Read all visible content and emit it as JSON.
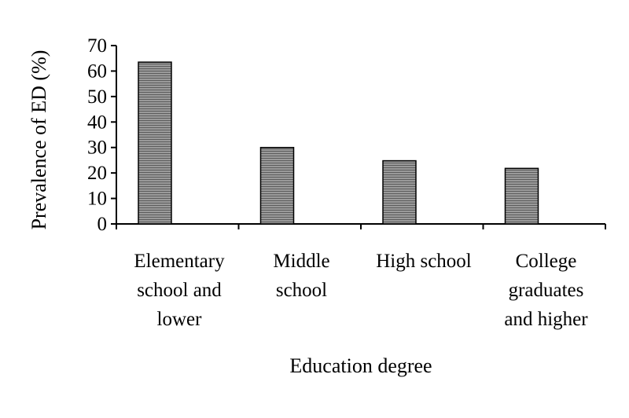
{
  "chart_data": {
    "type": "bar",
    "title": "",
    "xlabel": "Education degree",
    "ylabel": "Prevalence of ED (%)",
    "ylim": [
      0,
      70
    ],
    "yticks": [
      0,
      10,
      20,
      30,
      40,
      50,
      60,
      70
    ],
    "categories": [
      [
        "Elementary",
        "school and",
        "lower"
      ],
      [
        "Middle",
        "school"
      ],
      [
        "High school"
      ],
      [
        "College",
        "graduates",
        "and higher"
      ]
    ],
    "values": [
      63.5,
      30,
      24.8,
      21.8
    ],
    "grid": false,
    "legend": "none",
    "bar_color": "#8c8c8c",
    "bar_pattern": "horizontal-hatch"
  }
}
